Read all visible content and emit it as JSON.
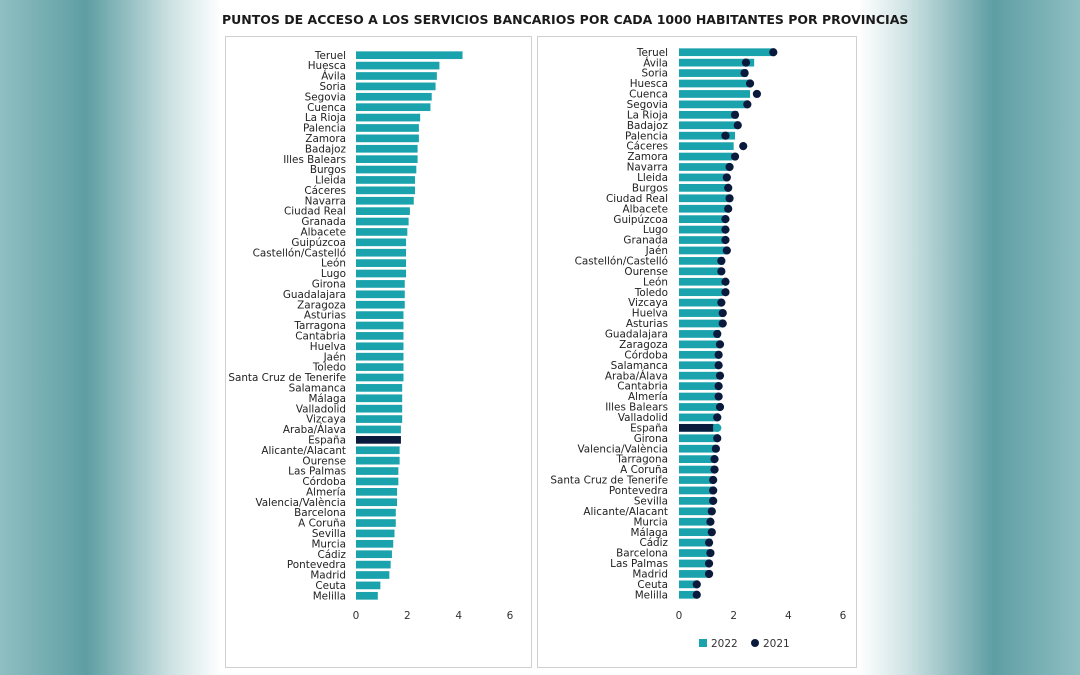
{
  "title": "PUNTOS DE ACCESO A LOS SERVICIOS BANCARIOS POR CADA 1000 HABITANTES POR PROVINCIAS",
  "colors": {
    "bar": "#1aa3ad",
    "highlight": "#0a1a3c",
    "dot": "#0a1a3c"
  },
  "chart_data": [
    {
      "type": "bar",
      "orientation": "horizontal",
      "xlim": [
        0,
        6
      ],
      "xticks": [
        0,
        2,
        4,
        6
      ],
      "grid": false,
      "highlight_category": "España",
      "categories": [
        "Teruel",
        "Huesca",
        "Ávila",
        "Soria",
        "Segovia",
        "Cuenca",
        "La Rioja",
        "Palencia",
        "Zamora",
        "Badajoz",
        "Illes Balears",
        "Burgos",
        "Lleida",
        "Cáceres",
        "Navarra",
        "Ciudad Real",
        "Granada",
        "Albacete",
        "Guipúzcoa",
        "Castellón/Castelló",
        "León",
        "Lugo",
        "Girona",
        "Guadalajara",
        "Zaragoza",
        "Asturias",
        "Tarragona",
        "Cantabria",
        "Huelva",
        "Jaén",
        "Toledo",
        "Santa Cruz de Tenerife",
        "Salamanca",
        "Málaga",
        "Valladolid",
        "Vizcaya",
        "Araba/Álava",
        "España",
        "Alicante/Alacant",
        "Ourense",
        "Las Palmas",
        "Córdoba",
        "Almería",
        "Valencia/València",
        "Barcelona",
        "A Coruña",
        "Sevilla",
        "Murcia",
        "Cádiz",
        "Pontevedra",
        "Madrid",
        "Ceuta",
        "Melilla"
      ],
      "values": [
        4.15,
        3.25,
        3.15,
        3.1,
        2.95,
        2.9,
        2.5,
        2.45,
        2.45,
        2.4,
        2.4,
        2.35,
        2.3,
        2.3,
        2.25,
        2.1,
        2.05,
        2.0,
        1.95,
        1.95,
        1.95,
        1.95,
        1.9,
        1.9,
        1.9,
        1.85,
        1.85,
        1.85,
        1.85,
        1.85,
        1.85,
        1.85,
        1.8,
        1.8,
        1.8,
        1.8,
        1.75,
        1.75,
        1.7,
        1.7,
        1.65,
        1.65,
        1.6,
        1.6,
        1.55,
        1.55,
        1.5,
        1.45,
        1.4,
        1.35,
        1.3,
        0.95,
        0.85
      ]
    },
    {
      "type": "bar",
      "orientation": "horizontal",
      "xlim": [
        0,
        6
      ],
      "xticks": [
        0,
        2,
        4,
        6
      ],
      "grid": false,
      "highlight_category": "España",
      "legend": {
        "placement": "bottom",
        "entries": [
          "2022",
          "2021"
        ]
      },
      "categories": [
        "Teruel",
        "Ávila",
        "Soria",
        "Huesca",
        "Cuenca",
        "Segovia",
        "La Rioja",
        "Badajoz",
        "Palencia",
        "Cáceres",
        "Zamora",
        "Navarra",
        "Lleida",
        "Burgos",
        "Ciudad Real",
        "Albacete",
        "Guipúzcoa",
        "Lugo",
        "Granada",
        "Jaén",
        "Castellón/Castelló",
        "Ourense",
        "León",
        "Toledo",
        "Vizcaya",
        "Huelva",
        "Asturias",
        "Guadalajara",
        "Zaragoza",
        "Córdoba",
        "Salamanca",
        "Araba/Álava",
        "Cantabria",
        "Almería",
        "Illes Balears",
        "Valladolid",
        "España",
        "Girona",
        "Valencia/València",
        "Tarragona",
        "A Coruña",
        "Santa Cruz de Tenerife",
        "Pontevedra",
        "Sevilla",
        "Alicante/Alacant",
        "Murcia",
        "Málaga",
        "Cádiz",
        "Barcelona",
        "Las Palmas",
        "Madrid",
        "Ceuta",
        "Melilla"
      ],
      "series": [
        {
          "name": "2022",
          "values": [
            3.4,
            2.75,
            2.5,
            2.65,
            2.6,
            2.45,
            2.15,
            2.1,
            2.05,
            2.0,
            1.95,
            1.85,
            1.8,
            1.8,
            1.8,
            1.75,
            1.7,
            1.7,
            1.7,
            1.7,
            1.65,
            1.6,
            1.6,
            1.6,
            1.55,
            1.55,
            1.55,
            1.5,
            1.5,
            1.5,
            1.45,
            1.45,
            1.45,
            1.45,
            1.45,
            1.4,
            1.4,
            1.35,
            1.35,
            1.3,
            1.3,
            1.3,
            1.3,
            1.25,
            1.25,
            1.2,
            1.2,
            1.2,
            1.15,
            1.15,
            1.1,
            0.6,
            0.6
          ]
        },
        {
          "name": "2021",
          "values": [
            3.45,
            2.45,
            2.4,
            2.6,
            2.85,
            2.5,
            2.05,
            2.15,
            1.7,
            2.35,
            2.05,
            1.85,
            1.75,
            1.8,
            1.85,
            1.8,
            1.7,
            1.7,
            1.7,
            1.75,
            1.55,
            1.55,
            1.7,
            1.7,
            1.55,
            1.6,
            1.6,
            1.4,
            1.5,
            1.45,
            1.45,
            1.5,
            1.45,
            1.45,
            1.5,
            1.4,
            1.25,
            1.4,
            1.35,
            1.3,
            1.3,
            1.25,
            1.25,
            1.25,
            1.2,
            1.15,
            1.2,
            1.1,
            1.15,
            1.1,
            1.1,
            0.65,
            0.65
          ]
        }
      ]
    }
  ]
}
